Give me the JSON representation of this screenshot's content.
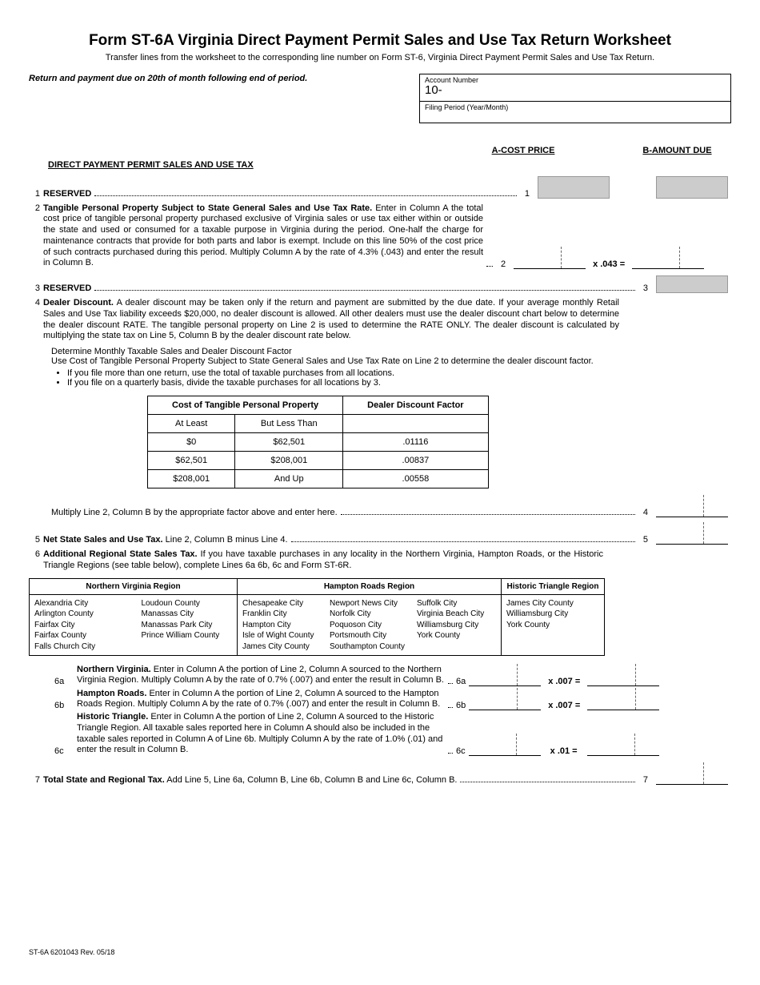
{
  "header": {
    "title": "Form ST-6A  Virginia Direct Payment Permit Sales and Use Tax Return Worksheet",
    "subtitle": "Transfer lines from the worksheet to the corresponding line number on Form ST-6, Virginia Direct Payment Permit Sales and Use Tax Return.",
    "due_note": "Return and payment due on 20th of month following end of period.",
    "account_number_label": "Account Number",
    "account_number_prefix": "10-",
    "filing_period_label": "Filing Period (Year/Month)"
  },
  "columns": {
    "a": "A-COST PRICE",
    "b": "B-AMOUNT DUE"
  },
  "section_head": "DIRECT PAYMENT PERMIT SALES AND USE TAX",
  "lines": {
    "l1": {
      "num": "1",
      "title": "RESERVED",
      "lnum": "1"
    },
    "l2": {
      "num": "2",
      "title": "Tangible Personal Property Subject to State General Sales and Use Tax Rate.",
      "text": "Enter in Column A the total cost price of tangible personal property purchased exclusive of Virginia sales or use tax either within or outside the state and used or consumed for a taxable purpose in Virginia during the period. One-half the charge for maintenance contracts that provide for both parts and labor is exempt. Include on this line 50% of the cost price of such contracts purchased during this period. Multiply Column A by the rate of 4.3% (.043) and enter the result in Column B.",
      "lnum": "2",
      "rate": "x .043 ="
    },
    "l3": {
      "num": "3",
      "title": "RESERVED",
      "lnum": "3"
    },
    "l4": {
      "num": "4",
      "title": "Dealer Discount.",
      "text": "A dealer discount may be taken only if the return and payment are submitted by the due date. If your average monthly Retail Sales and Use Tax liability exceeds $20,000, no dealer discount is allowed. All other dealers must use the dealer discount chart below to determine the dealer discount RATE.  The tangible personal property on Line 2 is used to determine the RATE ONLY.  The dealer discount is calculated by multiplying the state tax on Line 5, Column B by the dealer discount rate below.",
      "determine_head": "Determine Monthly Taxable Sales and Dealer Discount Factor",
      "determine_text": "Use Cost of Tangible Personal Property Subject to State General Sales and Use Tax Rate on Line 2 to determine the dealer discount factor.",
      "bullet1": "If you file more than one return, use the total of taxable purchases from all locations.",
      "bullet2": "If you file on a quarterly basis, divide the taxable purchases for all locations by 3.",
      "multiply_text": "Multiply Line 2, Column B by the appropriate factor above and enter here.",
      "lnum": "4"
    },
    "l5": {
      "num": "5",
      "title": "Net State Sales and Use Tax.",
      "text": "Line 2, Column B minus Line 4.",
      "lnum": "5"
    },
    "l6": {
      "num": "6",
      "title": "Additional Regional State Sales Tax.",
      "text": "If you have taxable purchases in any locality in the Northern Virginia, Hampton Roads, or the Historic Triangle Regions (see table below), complete Lines 6a 6b, 6c and Form ST-6R."
    },
    "l6a": {
      "num": "6a",
      "title": "Northern Virginia.",
      "text": "Enter in Column A the portion of Line 2, Column A sourced to the Northern Virginia Region. Multiply Column A by the rate of 0.7% (.007) and enter the result in Column B.",
      "lnum": "6a",
      "rate": "x .007 ="
    },
    "l6b": {
      "num": "6b",
      "title": "Hampton Roads.",
      "text": "Enter in Column A  the portion of Line 2, Column A sourced to the Hampton Roads Region. Multiply Column A by the rate of 0.7% (.007) and enter the result in Column B.",
      "lnum": "6b",
      "rate": "x .007 ="
    },
    "l6c": {
      "num": "6c",
      "title": "Historic Triangle.",
      "text": "Enter in Column A  the portion of Line 2, Column A sourced to the Historic Triangle Region.  All taxable sales reported here in Column A should also be included in the taxable sales  reported in Column A of Line 6b. Multiply Column A by the rate of 1.0% (.01) and enter the result in Column B.",
      "lnum": "6c",
      "rate": "x .01 ="
    },
    "l7": {
      "num": "7",
      "title": "Total State and Regional Tax.",
      "text": "Add Line 5, Line 6a, Column B, Line 6b, Column B and Line 6c, Column B.",
      "lnum": "7"
    }
  },
  "discount_table": {
    "head1": "Cost of Tangible Personal Property",
    "head2": "Dealer Discount Factor",
    "sub1": "At Least",
    "sub2": "But Less Than",
    "rows": [
      {
        "a": "$0",
        "b": "$62,501",
        "f": ".01116"
      },
      {
        "a": "$62,501",
        "b": "$208,001",
        "f": ".00837"
      },
      {
        "a": "$208,001",
        "b": "And Up",
        "f": ".00558"
      }
    ]
  },
  "regions": {
    "nv_head": "Northern Virginia Region",
    "hr_head": "Hampton Roads Region",
    "ht_head": "Historic Triangle Region",
    "nv_col1": "Alexandria City\nArlington County\nFairfax City\nFairfax County\nFalls Church City",
    "nv_col2": "Loudoun County\nManassas City\nManassas Park City\nPrince William County",
    "hr_col1": "Chesapeake City\nFranklin City\nHampton City\nIsle of Wight County\nJames City County",
    "hr_col2": "Newport News City\nNorfolk City\nPoquoson City\nPortsmouth City\nSouthampton County",
    "hr_col3": "Suffolk City\nVirginia Beach City\nWilliamsburg City\nYork County",
    "ht_col1": "James City County\nWilliamsburg City\nYork County"
  },
  "footer": "ST-6A 6201043    Rev. 05/18"
}
